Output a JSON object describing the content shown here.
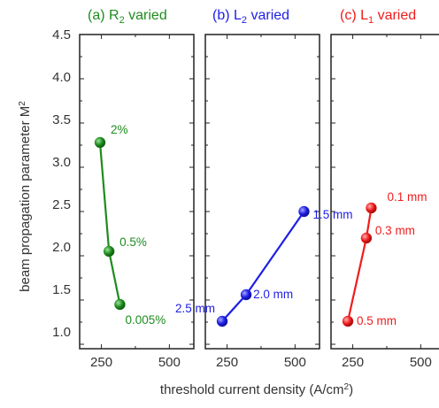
{
  "chart_data": {
    "type": "scatter",
    "y_axis": {
      "label_base": "beam propagation parameter M",
      "label_sup": "2",
      "ticks": [
        "1.0",
        "1.5",
        "2.0",
        "2.5",
        "3.0",
        "3.5",
        "4.0",
        "4.5"
      ],
      "range": [
        0.95,
        4.5
      ]
    },
    "x_axis": {
      "label_base": "threshold current density (A/cm",
      "label_sup": "2",
      "label_end": ")",
      "ticks": [
        "250",
        "500"
      ],
      "tick_values": [
        250,
        500
      ],
      "range": [
        170,
        590
      ]
    },
    "panels": [
      {
        "title_prefix": "(a) R",
        "title_sub": "2",
        "title_suffix": " varied",
        "color": "#1e8c1e",
        "points": [
          {
            "x": 245,
            "y": 3.28,
            "label": "2%"
          },
          {
            "x": 278,
            "y": 2.05,
            "label": "0.5%"
          },
          {
            "x": 318,
            "y": 1.45,
            "label": "0.005%"
          }
        ]
      },
      {
        "title_prefix": "(b) L",
        "title_sub": "2",
        "title_suffix": " varied",
        "color": "#1f1fe6",
        "points": [
          {
            "x": 232,
            "y": 1.26,
            "label": "2.5 mm"
          },
          {
            "x": 320,
            "y": 1.56,
            "label": "2.0 mm"
          },
          {
            "x": 533,
            "y": 2.5,
            "label": "1.5 mm"
          }
        ]
      },
      {
        "title_prefix": "(c) L",
        "title_sub": "1",
        "title_suffix": " varied",
        "color": "#f01c1c",
        "points": [
          {
            "x": 232,
            "y": 1.26,
            "label": "0.5 mm"
          },
          {
            "x": 300,
            "y": 2.2,
            "label": "0.3 mm"
          },
          {
            "x": 318,
            "y": 2.54,
            "label": "0.1 mm"
          }
        ]
      }
    ]
  }
}
